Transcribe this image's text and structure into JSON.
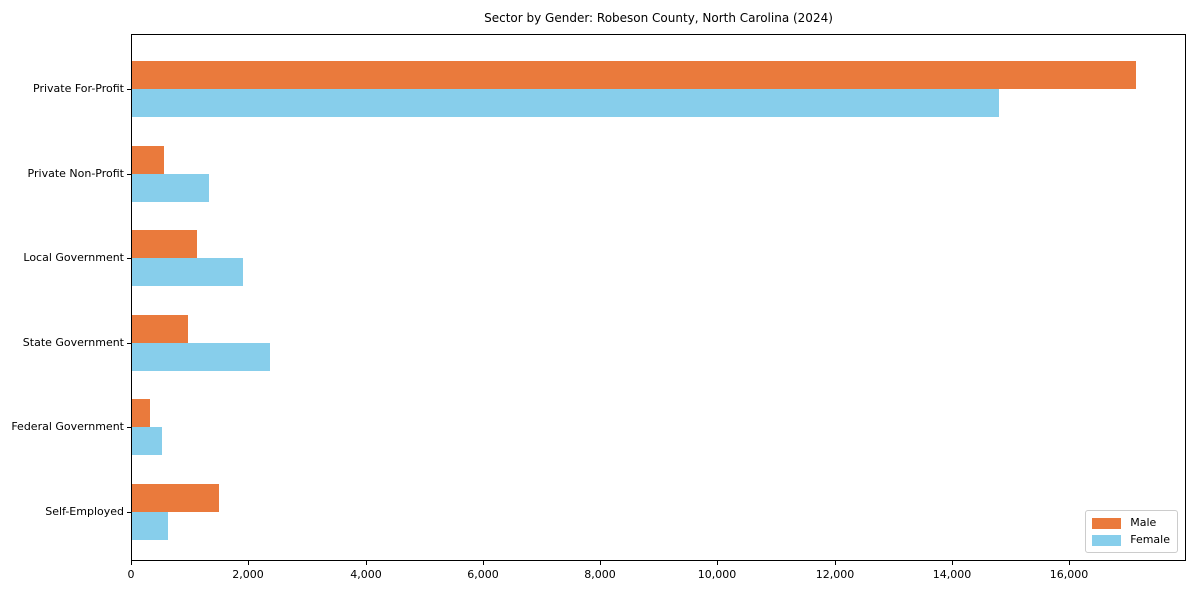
{
  "chart_data": {
    "type": "bar",
    "orientation": "horizontal",
    "title": "Sector by Gender: Robeson County, North Carolina (2024)",
    "categories": [
      "Private For-Profit",
      "Private Non-Profit",
      "Local Government",
      "State Government",
      "Federal Government",
      "Self-Employed"
    ],
    "series": [
      {
        "name": "Male",
        "color": "#ea7a3c",
        "values": [
          17120,
          550,
          1110,
          950,
          300,
          1480
        ]
      },
      {
        "name": "Female",
        "color": "#87ceeb",
        "values": [
          14790,
          1320,
          1890,
          2360,
          510,
          610
        ]
      }
    ],
    "xlabel": "",
    "ylabel": "",
    "xlim": [
      0,
      17990
    ],
    "xticks": [
      0,
      2000,
      4000,
      6000,
      8000,
      10000,
      12000,
      14000,
      16000
    ],
    "xtick_labels": [
      "0",
      "2,000",
      "4,000",
      "6,000",
      "8,000",
      "10,000",
      "12,000",
      "14,000",
      "16,000"
    ],
    "grid": false,
    "legend_position": "lower right",
    "colors": {
      "axis": "#000000",
      "legend_border": "#cccccc",
      "background": "#ffffff"
    }
  }
}
